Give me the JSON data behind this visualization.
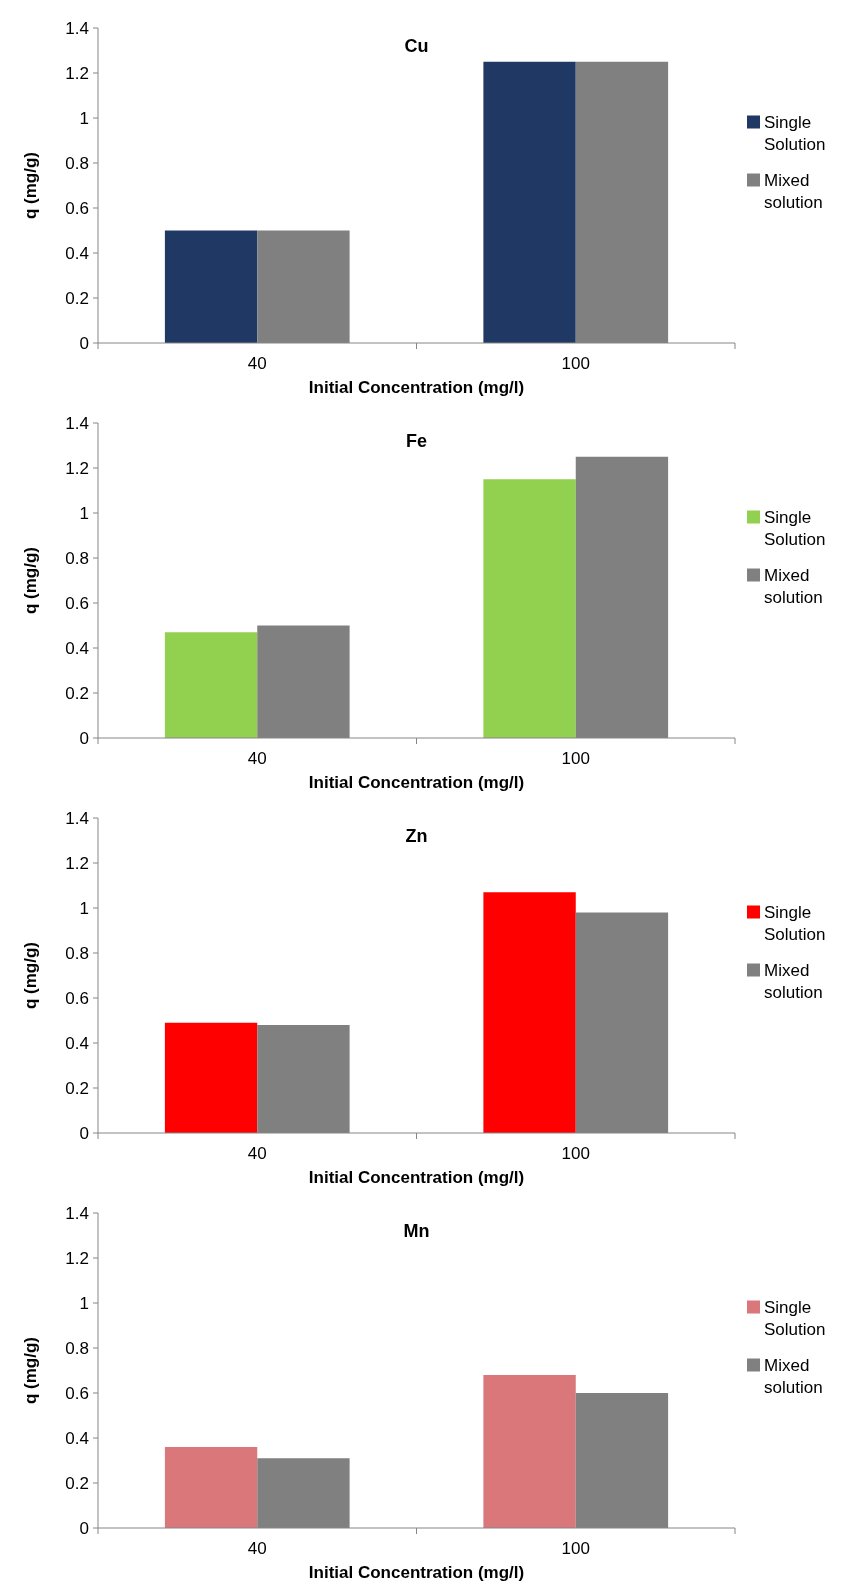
{
  "chart_data": [
    {
      "type": "bar",
      "title": "Cu",
      "xlabel": "Initial Concentration (mg/l)",
      "ylabel": "q (mg/g)",
      "categories": [
        "40",
        "100"
      ],
      "ylim": [
        0,
        1.4
      ],
      "yticks": [
        0,
        0.2,
        0.4,
        0.6,
        0.8,
        1,
        1.2,
        1.4
      ],
      "legend": "right",
      "series": [
        {
          "name": "Single Solution",
          "color": "#1f3864",
          "values": [
            0.5,
            1.25
          ]
        },
        {
          "name": "Mixed solution",
          "color": "#808080",
          "values": [
            0.5,
            1.25
          ]
        }
      ]
    },
    {
      "type": "bar",
      "title": "Fe",
      "xlabel": "Initial Concentration (mg/l)",
      "ylabel": "q (mg/g)",
      "categories": [
        "40",
        "100"
      ],
      "ylim": [
        0,
        1.4
      ],
      "yticks": [
        0,
        0.2,
        0.4,
        0.6,
        0.8,
        1,
        1.2,
        1.4
      ],
      "legend": "right",
      "series": [
        {
          "name": "Single Solution",
          "color": "#92d050",
          "values": [
            0.47,
            1.15
          ]
        },
        {
          "name": "Mixed solution",
          "color": "#808080",
          "values": [
            0.5,
            1.25
          ]
        }
      ]
    },
    {
      "type": "bar",
      "title": "Zn",
      "xlabel": "Initial Concentration (mg/l)",
      "ylabel": "q (mg/g)",
      "categories": [
        "40",
        "100"
      ],
      "ylim": [
        0,
        1.4
      ],
      "yticks": [
        0,
        0.2,
        0.4,
        0.6,
        0.8,
        1,
        1.2,
        1.4
      ],
      "legend": "right",
      "series": [
        {
          "name": "Single Solution",
          "color": "#ff0000",
          "values": [
            0.49,
            1.07
          ]
        },
        {
          "name": "Mixed solution",
          "color": "#808080",
          "values": [
            0.48,
            0.98
          ]
        }
      ]
    },
    {
      "type": "bar",
      "title": "Mn",
      "xlabel": "Initial Concentration (mg/l)",
      "ylabel": "q (mg/g)",
      "categories": [
        "40",
        "100"
      ],
      "ylim": [
        0,
        1.4
      ],
      "yticks": [
        0,
        0.2,
        0.4,
        0.6,
        0.8,
        1,
        1.2,
        1.4
      ],
      "legend": "right",
      "series": [
        {
          "name": "Single Solution",
          "color": "#d9777a",
          "values": [
            0.36,
            0.68
          ]
        },
        {
          "name": "Mixed solution",
          "color": "#808080",
          "values": [
            0.31,
            0.6
          ]
        }
      ]
    }
  ]
}
